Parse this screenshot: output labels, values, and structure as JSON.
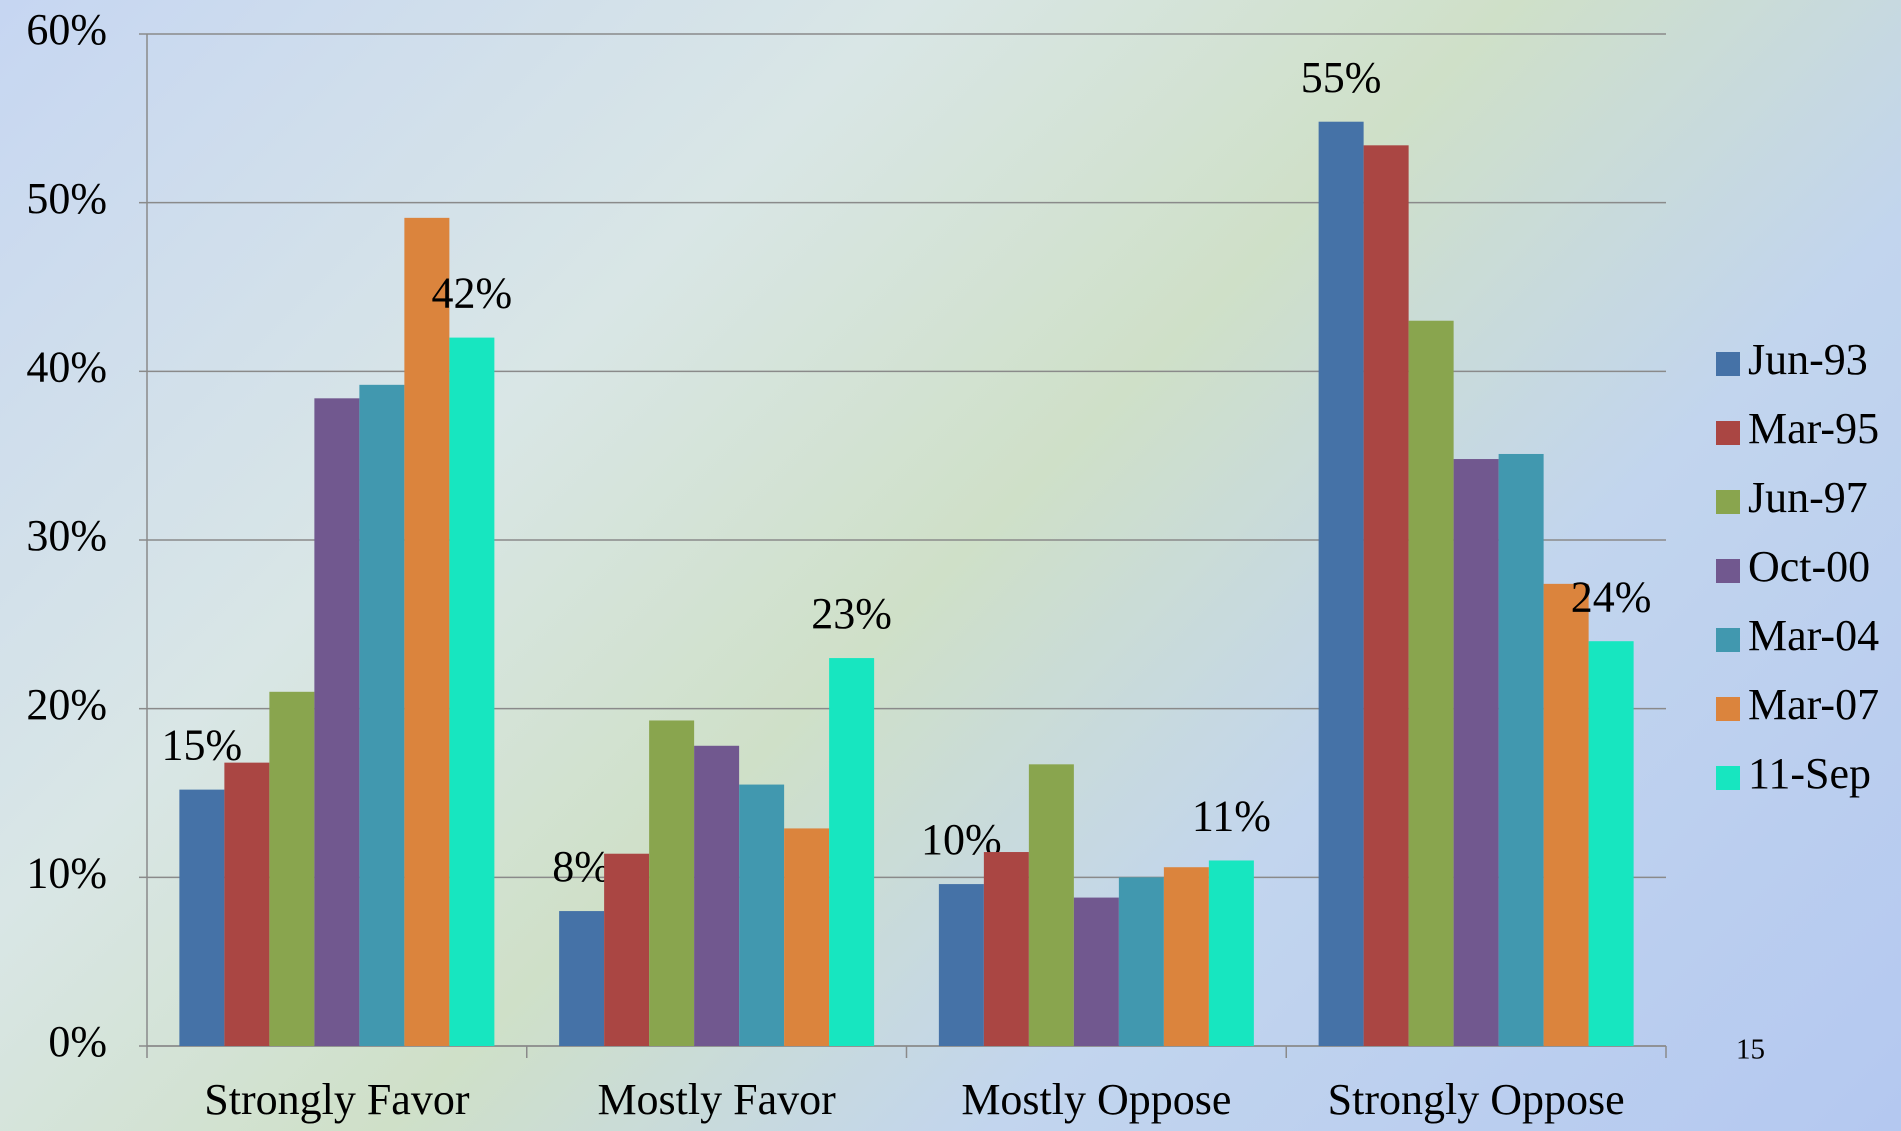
{
  "chart_data": {
    "type": "bar",
    "categories": [
      "Strongly Favor",
      "Mostly Favor",
      "Mostly Oppose",
      "Strongly Oppose"
    ],
    "series": [
      {
        "name": "Jun-93",
        "color": "#4572a7",
        "values": [
          15.2,
          8,
          9.6,
          54.8
        ],
        "value_labels": [
          "15%",
          "8%",
          "10%",
          "55%"
        ]
      },
      {
        "name": "Mar-95",
        "color": "#aa4643",
        "values": [
          16.8,
          11.4,
          11.5,
          53.4
        ]
      },
      {
        "name": "Jun-97",
        "color": "#89a54e",
        "values": [
          21,
          19.3,
          16.7,
          43
        ]
      },
      {
        "name": "Oct-00",
        "color": "#71588f",
        "values": [
          38.4,
          17.8,
          8.8,
          34.8
        ]
      },
      {
        "name": "Mar-04",
        "color": "#4198af",
        "values": [
          39.2,
          15.5,
          10,
          35.1
        ]
      },
      {
        "name": "Mar-07",
        "color": "#db843d",
        "values": [
          49.1,
          12.9,
          10.6,
          27.4
        ]
      },
      {
        "name": "11-Sep",
        "color": "#17e6c0",
        "values": [
          42,
          23,
          11,
          24
        ],
        "value_labels": [
          "42%",
          "23%",
          "11%",
          "24%"
        ]
      }
    ],
    "ylim": [
      0,
      60
    ],
    "yticks": [
      {
        "value": 0,
        "label": "0%"
      },
      {
        "value": 10,
        "label": "10%"
      },
      {
        "value": 20,
        "label": "20%"
      },
      {
        "value": 30,
        "label": "30%"
      },
      {
        "value": 40,
        "label": "40%"
      },
      {
        "value": 50,
        "label": "50%"
      },
      {
        "value": 60,
        "label": "60%"
      }
    ],
    "grid": true,
    "legend": "right"
  },
  "page_number": "15"
}
